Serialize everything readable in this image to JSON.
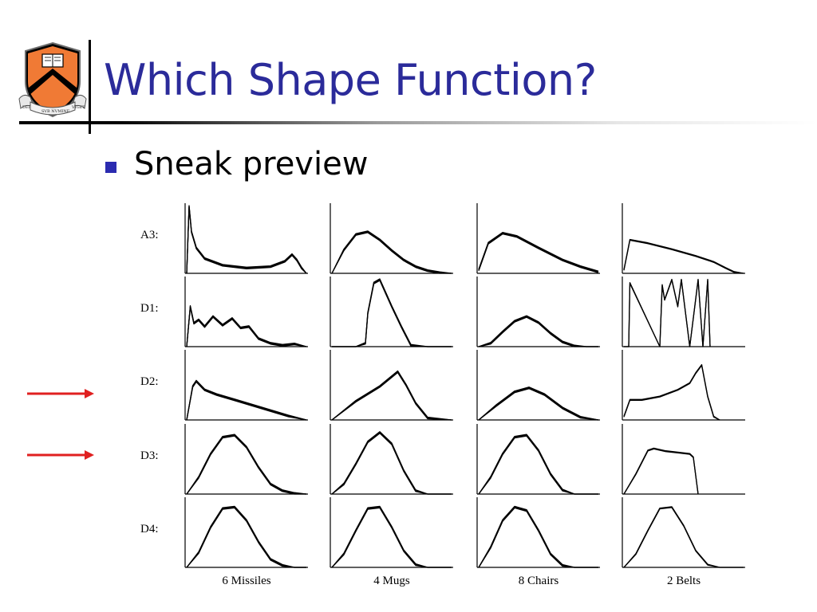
{
  "slide": {
    "title": "Which Shape Function?",
    "bullets": [
      "Sneak preview"
    ]
  },
  "logo": {
    "colors": {
      "shield": "#f07a35",
      "chevron": "#000000",
      "border": "#6b6b6b"
    },
    "motto": [
      "DEI",
      "SVB NVMINE",
      "VIGET"
    ]
  },
  "colors": {
    "title": "#2b2b9a",
    "bullet": "#2b2bb0",
    "arrow": "#e02020",
    "curves": "#000000"
  },
  "arrows": [
    {
      "points_to_row": "D2:"
    },
    {
      "points_to_row": "D3:"
    }
  ],
  "chart_data": {
    "type": "line",
    "grid_layout": "5 rows x 4 columns of small multiples",
    "row_labels": [
      "A3:",
      "D1:",
      "D2:",
      "D3:",
      "D4:"
    ],
    "column_labels": [
      "6 Missiles",
      "4 Mugs",
      "8 Chairs",
      "2 Belts"
    ],
    "axes": "unlabeled, no ticks, no grid",
    "x_range": [
      0,
      1
    ],
    "y_range": [
      0,
      1
    ],
    "note_series_count": {
      "6 Missiles": 6,
      "4 Mugs": 4,
      "8 Chairs": 8,
      "2 Belts": 2
    },
    "panels": [
      {
        "row": "A3:",
        "col": "6 Missiles",
        "x": [
          0.0,
          0.02,
          0.04,
          0.08,
          0.15,
          0.3,
          0.5,
          0.7,
          0.82,
          0.88,
          0.92,
          0.96,
          1.0
        ],
        "y": [
          0.0,
          1.0,
          0.62,
          0.38,
          0.22,
          0.12,
          0.08,
          0.1,
          0.18,
          0.28,
          0.2,
          0.08,
          0.0
        ]
      },
      {
        "row": "A3:",
        "col": "4 Mugs",
        "x": [
          0.0,
          0.1,
          0.2,
          0.3,
          0.4,
          0.5,
          0.6,
          0.7,
          0.8,
          0.9,
          1.0
        ],
        "y": [
          0.0,
          0.35,
          0.58,
          0.62,
          0.5,
          0.34,
          0.2,
          0.1,
          0.04,
          0.01,
          0.0
        ]
      },
      {
        "row": "A3:",
        "col": "8 Chairs",
        "x": [
          0.0,
          0.08,
          0.2,
          0.32,
          0.5,
          0.7,
          0.85,
          1.0
        ],
        "y": [
          0.05,
          0.45,
          0.6,
          0.55,
          0.38,
          0.2,
          0.1,
          0.02
        ]
      },
      {
        "row": "A3:",
        "col": "2 Belts",
        "x": [
          0.0,
          0.05,
          0.2,
          0.4,
          0.6,
          0.75,
          0.85,
          0.92,
          1.0
        ],
        "y": [
          0.05,
          0.5,
          0.45,
          0.36,
          0.26,
          0.17,
          0.08,
          0.02,
          0.0
        ]
      },
      {
        "row": "D1:",
        "col": "6 Missiles",
        "x": [
          0.0,
          0.03,
          0.06,
          0.1,
          0.15,
          0.22,
          0.3,
          0.38,
          0.45,
          0.52,
          0.6,
          0.7,
          0.8,
          0.9,
          1.0
        ],
        "y": [
          0.0,
          0.6,
          0.35,
          0.4,
          0.3,
          0.45,
          0.32,
          0.42,
          0.28,
          0.3,
          0.12,
          0.05,
          0.02,
          0.04,
          0.0
        ]
      },
      {
        "row": "D1:",
        "col": "4 Mugs",
        "x": [
          0.0,
          0.2,
          0.28,
          0.3,
          0.35,
          0.4,
          0.45,
          0.5,
          0.58,
          0.66,
          0.8,
          1.0
        ],
        "y": [
          0.0,
          0.0,
          0.05,
          0.5,
          0.95,
          1.0,
          0.8,
          0.6,
          0.3,
          0.02,
          0.0,
          0.0
        ]
      },
      {
        "row": "D1:",
        "col": "8 Chairs",
        "x": [
          0.0,
          0.1,
          0.2,
          0.3,
          0.4,
          0.5,
          0.6,
          0.7,
          0.8,
          0.9,
          1.0
        ],
        "y": [
          0.0,
          0.05,
          0.22,
          0.38,
          0.45,
          0.36,
          0.2,
          0.07,
          0.01,
          0.0,
          0.0
        ]
      },
      {
        "row": "D1:",
        "col": "2 Belts",
        "x": [
          0.0,
          0.04,
          0.05,
          0.3,
          0.32,
          0.34,
          0.4,
          0.45,
          0.48,
          0.55,
          0.62,
          0.66,
          0.7,
          0.72
        ],
        "y": [
          0.0,
          0.0,
          0.95,
          0.0,
          0.92,
          0.7,
          1.0,
          0.6,
          1.0,
          0.0,
          1.0,
          0.0,
          1.0,
          0.0
        ]
      },
      {
        "row": "D2:",
        "col": "6 Missiles",
        "x": [
          0.0,
          0.05,
          0.08,
          0.15,
          0.25,
          0.4,
          0.55,
          0.7,
          0.85,
          1.0
        ],
        "y": [
          0.0,
          0.5,
          0.58,
          0.45,
          0.38,
          0.3,
          0.22,
          0.14,
          0.06,
          0.0
        ]
      },
      {
        "row": "D2:",
        "col": "4 Mugs",
        "x": [
          0.0,
          0.2,
          0.4,
          0.55,
          0.62,
          0.7,
          0.8,
          1.0
        ],
        "y": [
          0.0,
          0.28,
          0.5,
          0.72,
          0.52,
          0.25,
          0.03,
          0.0
        ]
      },
      {
        "row": "D2:",
        "col": "8 Chairs",
        "x": [
          0.0,
          0.15,
          0.3,
          0.42,
          0.55,
          0.7,
          0.85,
          1.0
        ],
        "y": [
          0.0,
          0.22,
          0.42,
          0.48,
          0.38,
          0.18,
          0.04,
          0.0
        ]
      },
      {
        "row": "D2:",
        "col": "2 Belts",
        "x": [
          0.0,
          0.05,
          0.15,
          0.3,
          0.45,
          0.55,
          0.6,
          0.65,
          0.7,
          0.75,
          0.8
        ],
        "y": [
          0.05,
          0.3,
          0.3,
          0.35,
          0.45,
          0.55,
          0.7,
          0.82,
          0.35,
          0.05,
          0.0
        ]
      },
      {
        "row": "D3:",
        "col": "6 Missiles",
        "x": [
          0.0,
          0.1,
          0.2,
          0.3,
          0.4,
          0.5,
          0.6,
          0.7,
          0.8,
          0.9,
          1.0
        ],
        "y": [
          0.0,
          0.25,
          0.6,
          0.85,
          0.88,
          0.7,
          0.4,
          0.15,
          0.05,
          0.01,
          0.0
        ]
      },
      {
        "row": "D3:",
        "col": "4 Mugs",
        "x": [
          0.0,
          0.1,
          0.2,
          0.3,
          0.4,
          0.5,
          0.6,
          0.7,
          0.8,
          1.0
        ],
        "y": [
          0.0,
          0.15,
          0.45,
          0.78,
          0.92,
          0.75,
          0.35,
          0.05,
          0.0,
          0.0
        ]
      },
      {
        "row": "D3:",
        "col": "8 Chairs",
        "x": [
          0.0,
          0.1,
          0.2,
          0.3,
          0.4,
          0.5,
          0.6,
          0.7,
          0.8,
          1.0
        ],
        "y": [
          0.0,
          0.25,
          0.6,
          0.85,
          0.88,
          0.65,
          0.3,
          0.06,
          0.0,
          0.0
        ]
      },
      {
        "row": "D3:",
        "col": "2 Belts",
        "x": [
          0.0,
          0.1,
          0.2,
          0.25,
          0.35,
          0.45,
          0.55,
          0.58,
          0.62
        ],
        "y": [
          0.0,
          0.3,
          0.65,
          0.68,
          0.64,
          0.62,
          0.6,
          0.55,
          0.0
        ]
      },
      {
        "row": "D4:",
        "col": "6 Missiles",
        "x": [
          0.0,
          0.1,
          0.2,
          0.3,
          0.4,
          0.5,
          0.6,
          0.7,
          0.8,
          0.9,
          1.0
        ],
        "y": [
          0.0,
          0.22,
          0.6,
          0.88,
          0.9,
          0.7,
          0.38,
          0.12,
          0.03,
          0.0,
          0.0
        ]
      },
      {
        "row": "D4:",
        "col": "4 Mugs",
        "x": [
          0.0,
          0.1,
          0.2,
          0.3,
          0.4,
          0.5,
          0.6,
          0.7,
          0.8,
          1.0
        ],
        "y": [
          0.0,
          0.2,
          0.55,
          0.88,
          0.9,
          0.6,
          0.25,
          0.04,
          0.0,
          0.0
        ]
      },
      {
        "row": "D4:",
        "col": "8 Chairs",
        "x": [
          0.0,
          0.1,
          0.2,
          0.3,
          0.4,
          0.5,
          0.6,
          0.7,
          0.8,
          1.0
        ],
        "y": [
          0.0,
          0.3,
          0.7,
          0.9,
          0.85,
          0.55,
          0.2,
          0.03,
          0.0,
          0.0
        ]
      },
      {
        "row": "D4:",
        "col": "2 Belts",
        "x": [
          0.0,
          0.1,
          0.2,
          0.3,
          0.4,
          0.5,
          0.6,
          0.7,
          0.8,
          1.0
        ],
        "y": [
          0.0,
          0.2,
          0.55,
          0.88,
          0.9,
          0.62,
          0.25,
          0.04,
          0.0,
          0.0
        ]
      }
    ]
  }
}
